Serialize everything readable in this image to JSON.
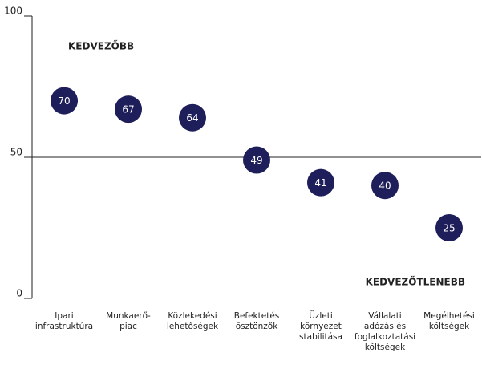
{
  "chart_data": {
    "type": "dot",
    "categories": [
      "Ipari\ninfrastruktúra",
      "Munkaerő-\npiac",
      "Közlekedési\nlehetőségek",
      "Befektetés\nösztönzők",
      "Üzleti\nkörnyezet\nstabilitása",
      "Vállalati\nadózás és\nfoglalkoztatási\nköltségek",
      "Megélhetési\nköltségek"
    ],
    "values": [
      70,
      67,
      64,
      49,
      41,
      40,
      25
    ],
    "color": "#1e1e5a",
    "ylim": [
      0,
      100
    ],
    "yticks": [
      0,
      50,
      100
    ],
    "annotations": [
      "KEDVEZŐBB",
      "KEDVEZŐTLENEBB"
    ]
  }
}
